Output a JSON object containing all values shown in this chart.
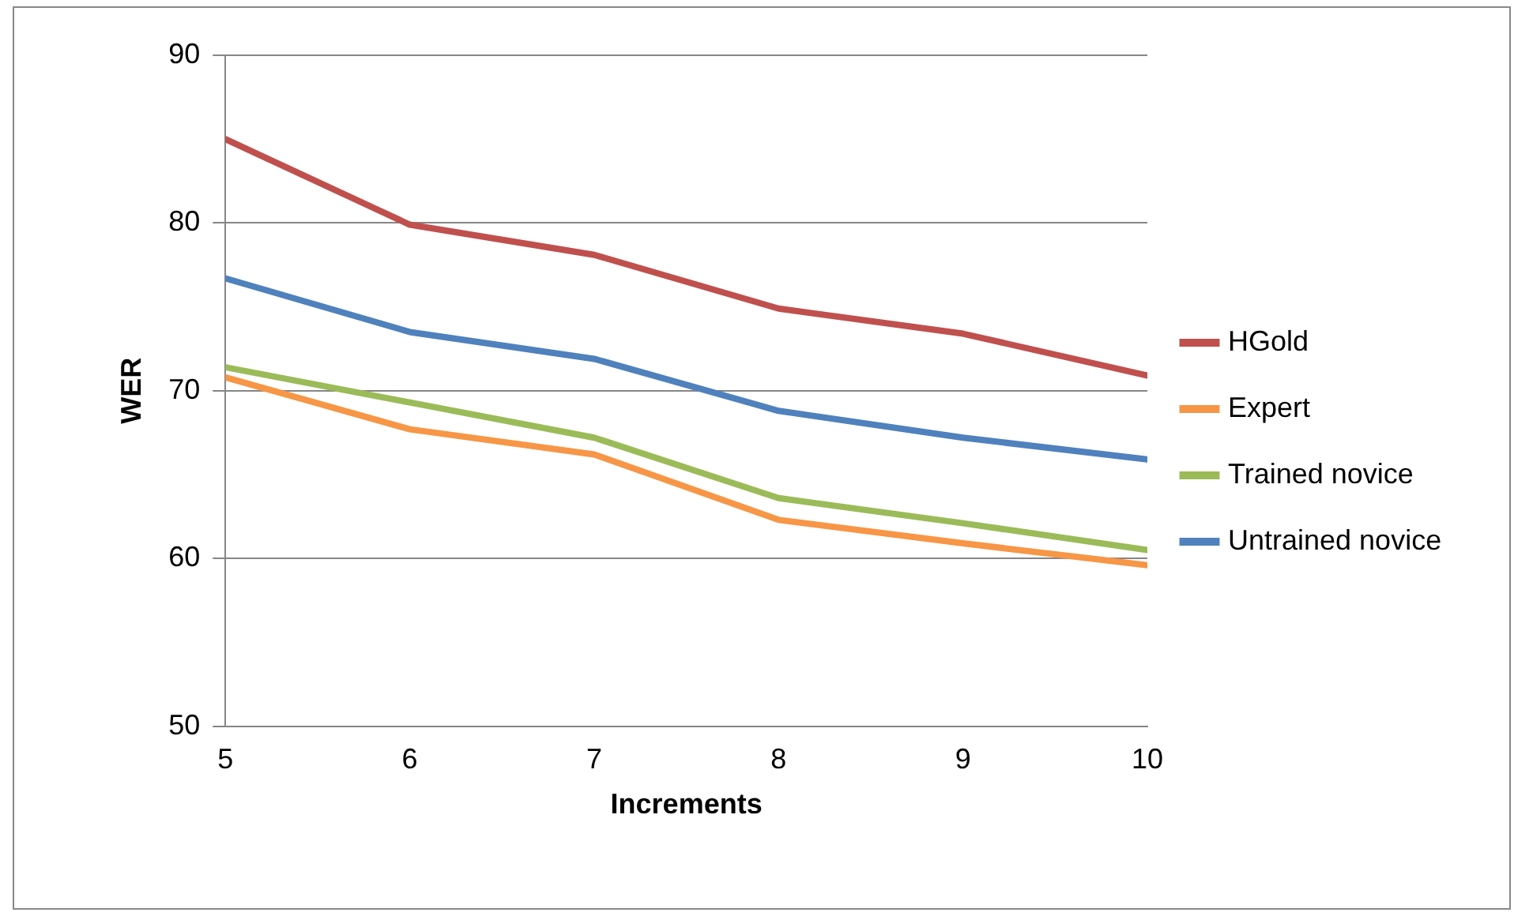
{
  "chart_data": {
    "type": "line",
    "xlabel": "Increments",
    "ylabel": "WER",
    "x": [
      5,
      6,
      7,
      8,
      9,
      10
    ],
    "xlim": [
      5,
      10
    ],
    "xticks": [
      5,
      6,
      7,
      8,
      9,
      10
    ],
    "ylim": [
      50,
      90
    ],
    "yticks": [
      50,
      60,
      70,
      80,
      90
    ],
    "grid": "y",
    "legend": "right",
    "marker": "none",
    "line_style": "solid",
    "series": [
      {
        "name": "HGold",
        "color": "#c0504d",
        "values": [
          85.0,
          79.9,
          78.1,
          74.9,
          73.4,
          70.9
        ]
      },
      {
        "name": "Expert",
        "color": "#f79646",
        "values": [
          70.8,
          67.7,
          66.2,
          62.3,
          60.9,
          59.6
        ]
      },
      {
        "name": "Trained novice",
        "color": "#9bbb59",
        "values": [
          71.4,
          69.3,
          67.2,
          63.6,
          62.1,
          60.5
        ]
      },
      {
        "name": "Untrained novice",
        "color": "#4f81bd",
        "values": [
          76.7,
          73.5,
          71.9,
          68.8,
          67.2,
          65.9
        ]
      }
    ]
  }
}
